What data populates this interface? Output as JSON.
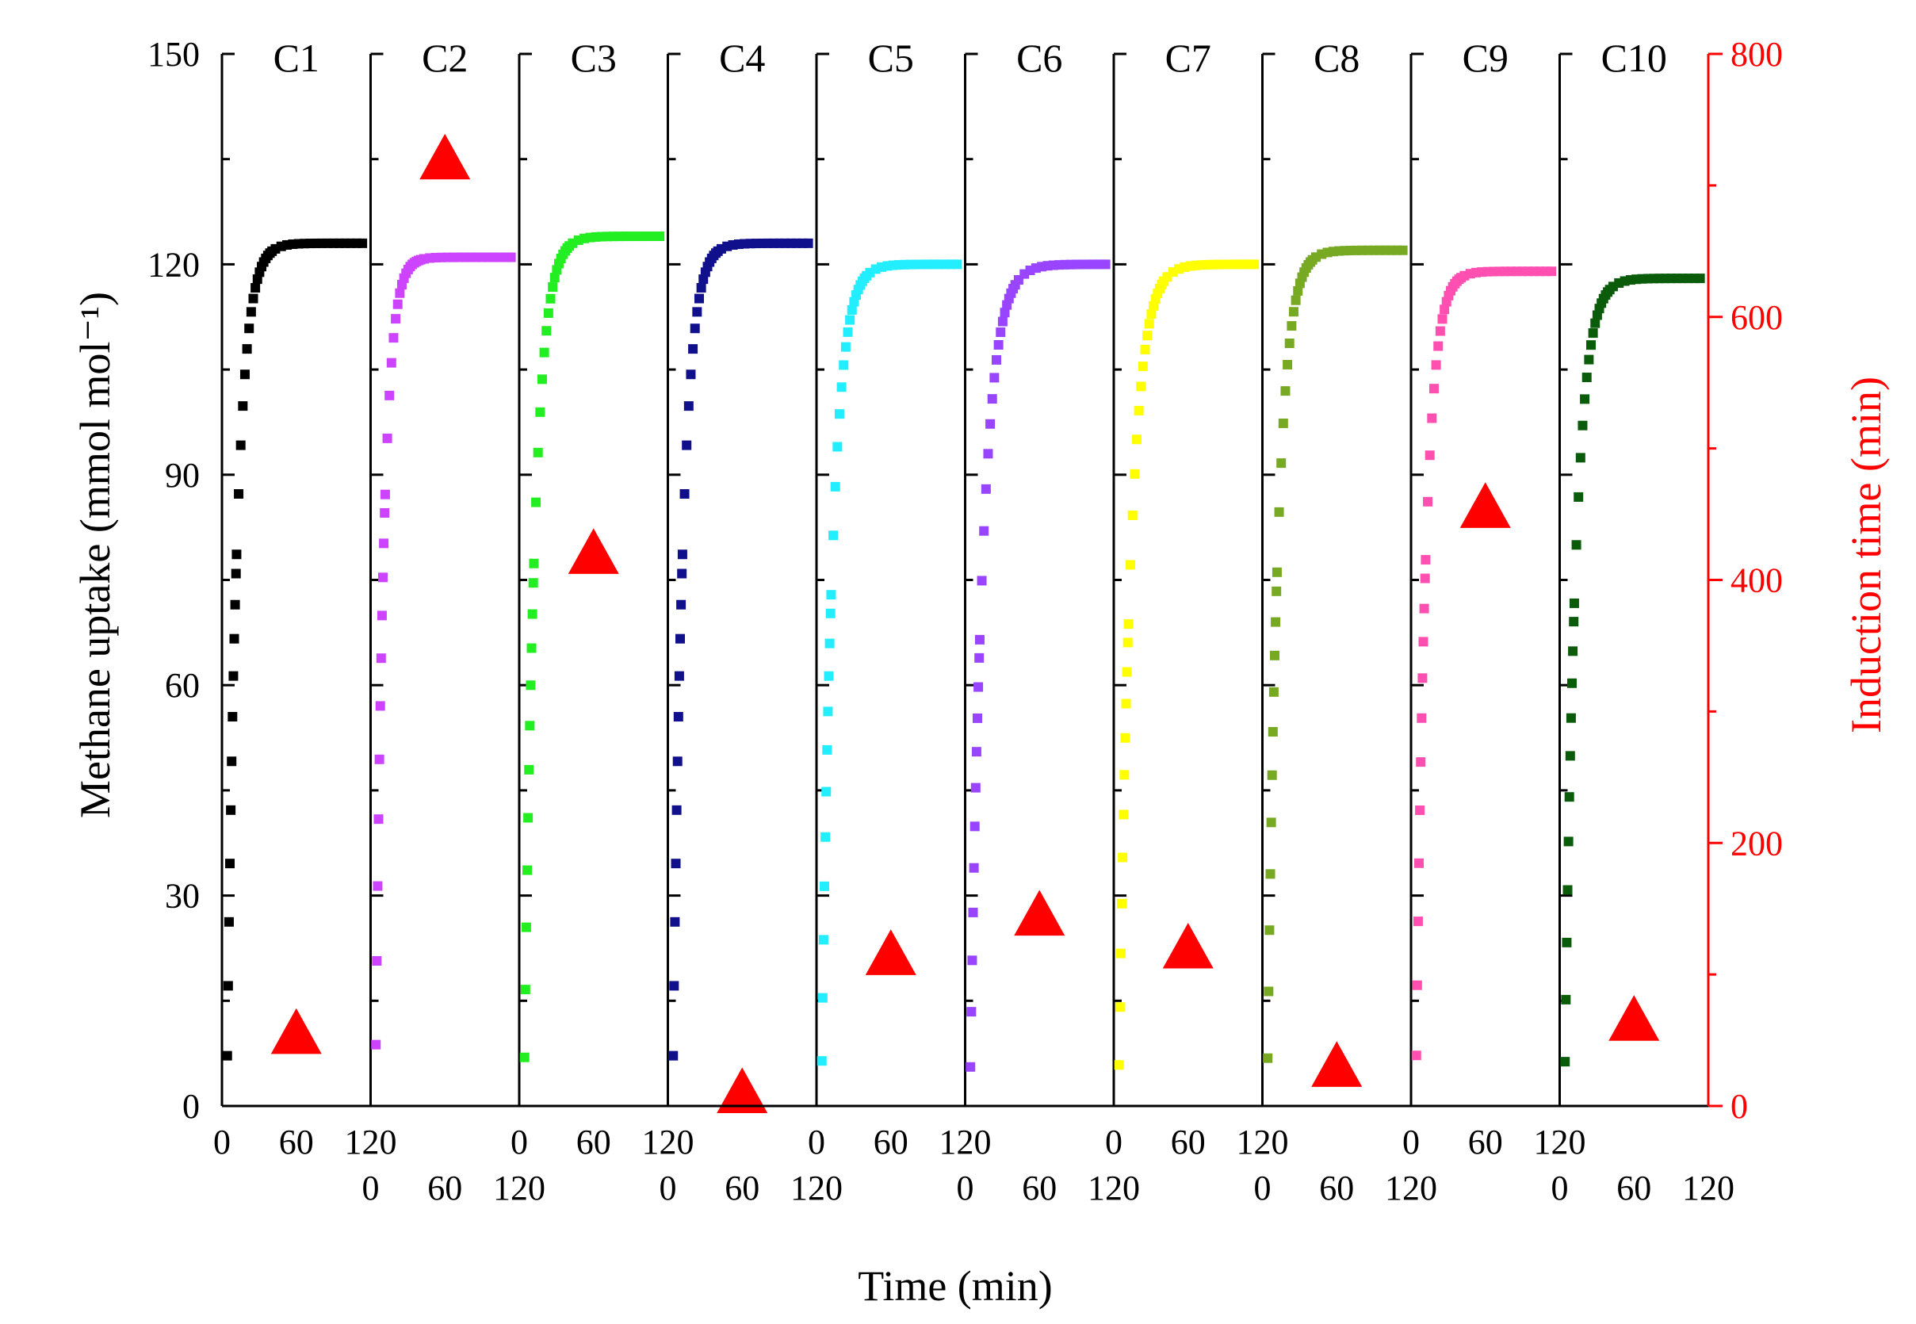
{
  "chart_data": {
    "type": "scatter",
    "title": "",
    "xlabel": "Time (min)",
    "ylabel": "Methane uptake (mmol mol⁻¹)",
    "y2label": "Induction time (min)",
    "ylim": [
      0,
      150
    ],
    "y2lim": [
      0,
      800
    ],
    "y_ticks": [
      "0",
      "30",
      "60",
      "90",
      "120",
      "150"
    ],
    "y2_ticks": [
      "0",
      "200",
      "400",
      "600",
      "800"
    ],
    "x_ticks": [
      "0",
      "60",
      "120"
    ],
    "xlim": [
      0,
      120
    ],
    "grid": false,
    "colors": {
      "axis": "#000000",
      "induction": "#ff0000"
    },
    "panels": [
      {
        "name": "C1",
        "color": "#000000",
        "plateau": 123,
        "rate": 0.12,
        "induction_time": 55
      },
      {
        "name": "C2",
        "color": "#cc44ff",
        "plateau": 121,
        "rate": 0.15,
        "induction_time": 720
      },
      {
        "name": "C3",
        "color": "#22ee22",
        "plateau": 124,
        "rate": 0.115,
        "induction_time": 420
      },
      {
        "name": "C4",
        "color": "#10108c",
        "plateau": 123,
        "rate": 0.12,
        "induction_time": 10
      },
      {
        "name": "C5",
        "color": "#22eeff",
        "plateau": 120,
        "rate": 0.11,
        "induction_time": 115
      },
      {
        "name": "C6",
        "color": "#9944ff",
        "plateau": 120,
        "rate": 0.095,
        "induction_time": 145
      },
      {
        "name": "C7",
        "color": "#ffff00",
        "plateau": 120,
        "rate": 0.1,
        "induction_time": 120
      },
      {
        "name": "C8",
        "color": "#77aa22",
        "plateau": 122,
        "rate": 0.115,
        "induction_time": 30
      },
      {
        "name": "C9",
        "color": "#ff4fb0",
        "plateau": 119,
        "rate": 0.125,
        "induction_time": 455
      },
      {
        "name": "C10",
        "color": "#0a5c0a",
        "plateau": 118,
        "rate": 0.11,
        "induction_time": 65
      }
    ]
  }
}
